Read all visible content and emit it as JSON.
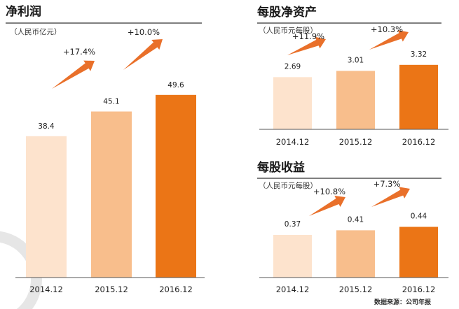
{
  "colors": {
    "bar_2014": "#FDE3CD",
    "bar_2015": "#F8BE8C",
    "bar_2016": "#EB7516",
    "arrow": "#E9702A",
    "title_line": "#333333",
    "decoration": "#E6E6E6"
  },
  "chart_data": [
    {
      "id": "net_profit",
      "type": "bar",
      "title": "净利润",
      "subtitle": "（人民币亿元）",
      "categories": [
        "2014.12",
        "2015.12",
        "2016.12"
      ],
      "values": [
        38.4,
        45.1,
        49.6
      ],
      "value_labels": [
        "38.4",
        "45.1",
        "49.6"
      ],
      "growth_labels": [
        "+17.4%",
        "+10.0%"
      ]
    },
    {
      "id": "bvps",
      "type": "bar",
      "title": "每股净资产",
      "subtitle": "（人民币元每股）",
      "categories": [
        "2014.12",
        "2015.12",
        "2016.12"
      ],
      "values": [
        2.69,
        3.01,
        3.32
      ],
      "value_labels": [
        "2.69",
        "3.01",
        "3.32"
      ],
      "growth_labels": [
        "+11.9%",
        "+10.3%"
      ]
    },
    {
      "id": "eps",
      "type": "bar",
      "title": "每股收益",
      "subtitle": "（人民币元每股）",
      "categories": [
        "2014.12",
        "2015.12",
        "2016.12"
      ],
      "values": [
        0.37,
        0.41,
        0.44
      ],
      "value_labels": [
        "0.37",
        "0.41",
        "0.44"
      ],
      "growth_labels": [
        "+10.8%",
        "+7.3%"
      ]
    }
  ],
  "source": "数据来源：公司年报"
}
